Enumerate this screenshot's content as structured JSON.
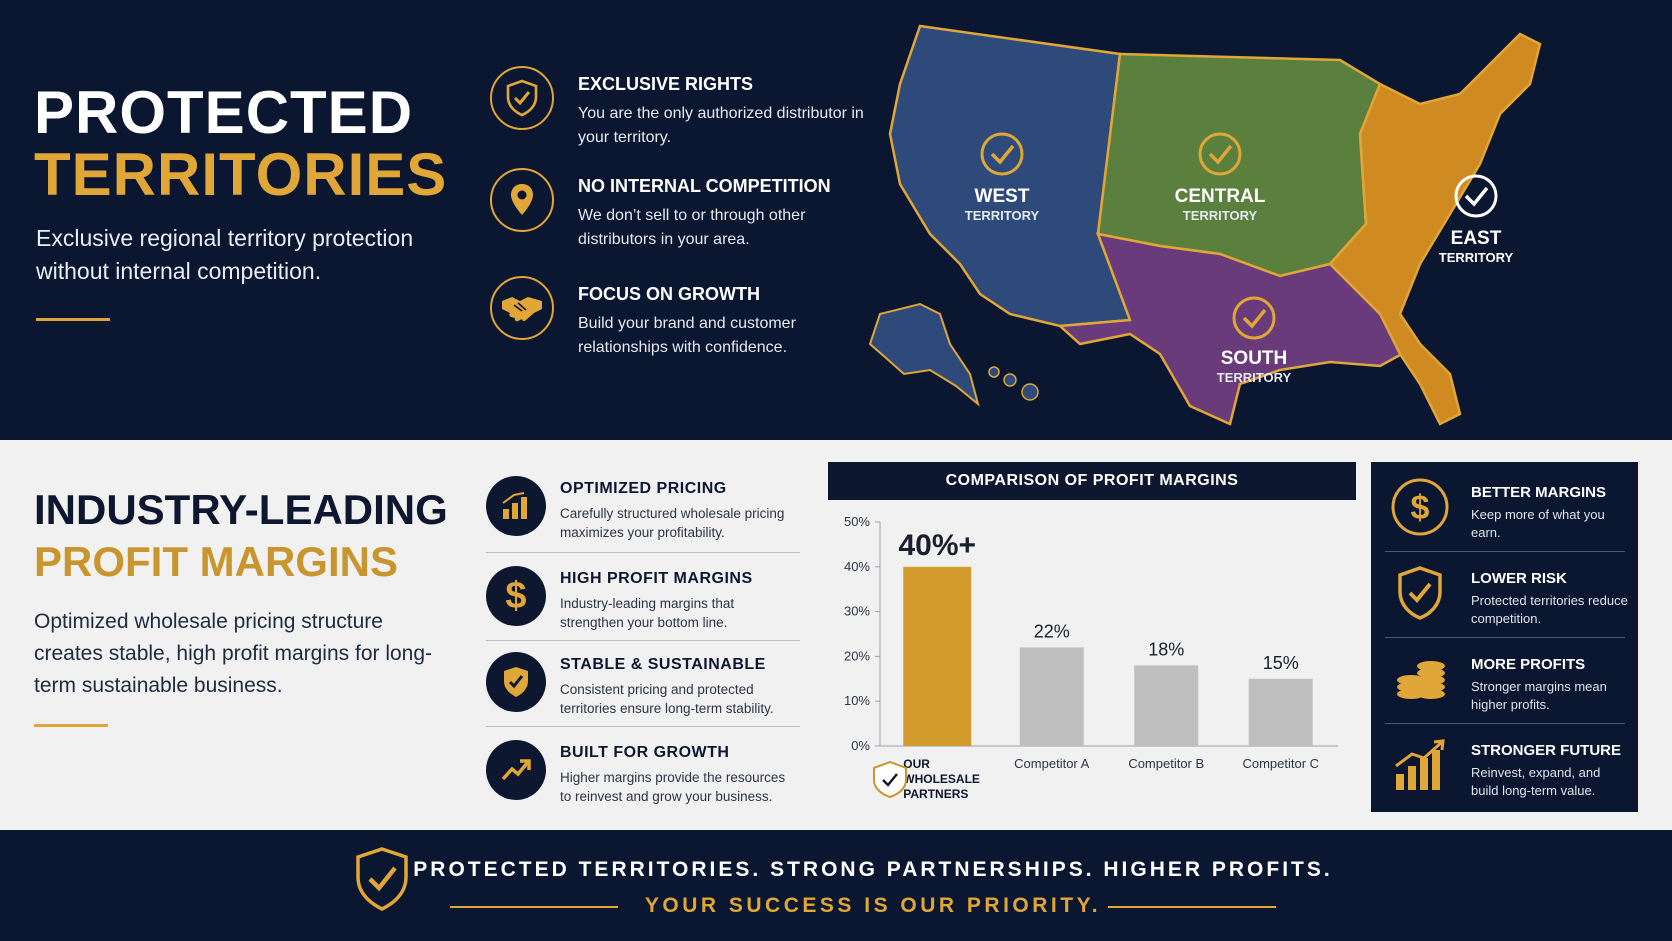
{
  "top": {
    "title_line1": "PROTECTED",
    "title_line2": "TERRITORIES",
    "subtitle": "Exclusive regional territory protection without internal competition.",
    "features": [
      {
        "icon": "shield-check-icon",
        "title": "EXCLUSIVE RIGHTS",
        "desc": "You are the only authorized distributor in your territory."
      },
      {
        "icon": "location-pin-icon",
        "title": "NO INTERNAL COMPETITION",
        "desc": "We don’t sell to or through other distributors in your area."
      },
      {
        "icon": "handshake-icon",
        "title": "FOCUS ON GROWTH",
        "desc": "Build your brand and customer relationships with confidence."
      }
    ]
  },
  "map": {
    "regions": [
      {
        "name": "WEST",
        "sub": "TERRITORY",
        "color": "#2d4a7a"
      },
      {
        "name": "CENTRAL",
        "sub": "TERRITORY",
        "color": "#5b7f3c"
      },
      {
        "name": "EAST",
        "sub": "TERRITORY",
        "color": "#d08a22"
      },
      {
        "name": "SOUTH",
        "sub": "TERRITORY",
        "color": "#6a3b7a"
      }
    ]
  },
  "mid": {
    "title_line1": "INDUSTRY-LEADING",
    "title_line2": "PROFIT MARGINS",
    "subtitle": "Optimized wholesale pricing structure creates stable, high profit margins for long-term sustainable business.",
    "items": [
      {
        "icon": "bar-chart-icon",
        "title": "OPTIMIZED PRICING",
        "desc": "Carefully structured wholesale pricing maximizes your profitability."
      },
      {
        "icon": "dollar-icon",
        "title": "HIGH PROFIT MARGINS",
        "desc": "Industry-leading margins that strengthen your bottom line."
      },
      {
        "icon": "shield-check-icon",
        "title": "STABLE & SUSTAINABLE",
        "desc": "Consistent pricing and protected territories ensure long-term stability."
      },
      {
        "icon": "trend-up-icon",
        "title": "BUILT FOR GROWTH",
        "desc": "Higher margins provide the resources to reinvest and grow your business."
      }
    ]
  },
  "chart_data": {
    "type": "bar",
    "title": "COMPARISON OF PROFIT MARGINS",
    "categories": [
      "OUR WHOLESALE PARTNERS",
      "Competitor A",
      "Competitor B",
      "Competitor C"
    ],
    "values": [
      40,
      22,
      18,
      15
    ],
    "data_labels": [
      "40%+",
      "22%",
      "18%",
      "15%"
    ],
    "y_ticks": [
      "0%",
      "10%",
      "20%",
      "30%",
      "40%",
      "50%"
    ],
    "ylim": [
      0,
      50
    ],
    "colors": [
      "#d39a2c",
      "#bfbfbf",
      "#bfbfbf",
      "#bfbfbf"
    ],
    "grid": false
  },
  "side": {
    "items": [
      {
        "icon": "dollar-circle-icon",
        "title": "BETTER MARGINS",
        "desc": "Keep more of what you earn."
      },
      {
        "icon": "shield-check-icon",
        "title": "LOWER RISK",
        "desc": "Protected territories reduce competition."
      },
      {
        "icon": "coins-icon",
        "title": "MORE PROFITS",
        "desc": "Stronger margins mean higher profits."
      },
      {
        "icon": "growth-chart-icon",
        "title": "STRONGER FUTURE",
        "desc": "Reinvest, expand, and build long-term value."
      }
    ]
  },
  "footer": {
    "line1": "PROTECTED TERRITORIES. STRONG PARTNERSHIPS. HIGHER PROFITS.",
    "line2": "YOUR SUCCESS IS OUR PRIORITY."
  },
  "colors": {
    "navy": "#0b1631",
    "gold": "#e0a637",
    "light": "#f1f1f1"
  }
}
